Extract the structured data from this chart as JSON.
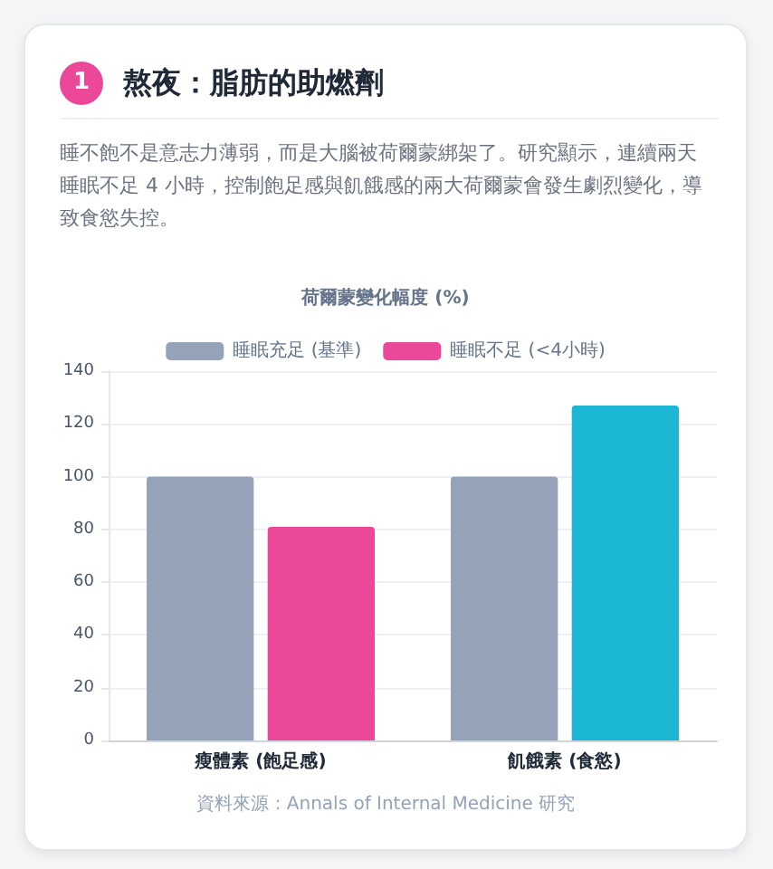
{
  "chart_data": {
    "type": "bar",
    "title": "熬夜：脂肪的助燃劑",
    "subtitle": "睡不飽不是意志力薄弱，而是大腦被荷爾蒙綁架了。研究顯示，連續兩天睡眠不足 4 小時，控制飽足感與飢餓感的兩大荷爾蒙會發生劇烈變化，導致食慾失控。",
    "annotations": [
      "1",
      "荷爾蒙變化幅度 (%)",
      "資料來源：Annals of Internal Medicine 研究"
    ],
    "categories": [
      "瘦體素 (飽足感)",
      "飢餓素 (食慾)"
    ],
    "series": [
      {
        "name": "睡眠充足 (基準)",
        "color": "#94a3b8",
        "values": [
          100,
          100
        ]
      },
      {
        "name": "睡眠不足 (<4小時)",
        "color": "#ec4899",
        "colors": [
          "#ec4899",
          "#1ab6d4"
        ],
        "values": [
          81,
          127
        ]
      }
    ],
    "ylim": [
      0,
      140
    ],
    "yticks": [
      0,
      20,
      40,
      60,
      80,
      100,
      120,
      140
    ],
    "grid": "y",
    "legend": "top"
  }
}
